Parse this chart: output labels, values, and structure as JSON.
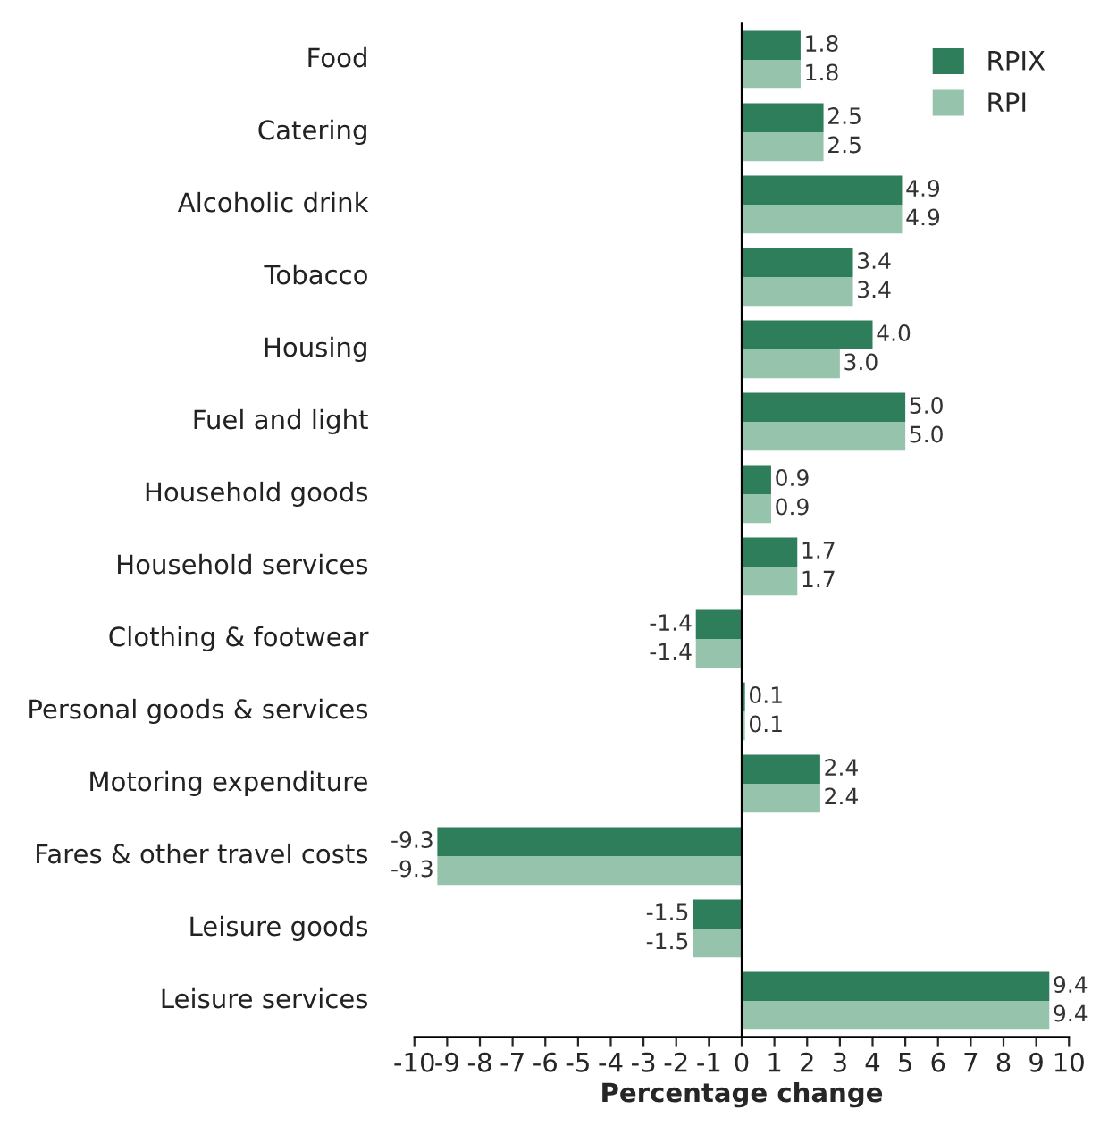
{
  "chart_data": {
    "type": "bar",
    "orientation": "horizontal",
    "xlabel": "Percentage change",
    "categories": [
      "Food",
      "Catering",
      "Alcoholic drink",
      "Tobacco",
      "Housing",
      "Fuel and light",
      "Household goods",
      "Household services",
      "Clothing & footwear",
      "Personal goods & services",
      "Motoring expenditure",
      "Fares & other travel costs",
      "Leisure goods",
      "Leisure services"
    ],
    "series": [
      {
        "name": "RPIX",
        "color": "#2e7d5b",
        "values": [
          1.8,
          2.5,
          4.9,
          3.4,
          4,
          5,
          0.9,
          1.7,
          -1.4,
          0.1,
          2.4,
          -9.3,
          -1.5,
          9.4
        ],
        "value_labels": [
          "1.8",
          "2.5",
          "4.9",
          "3.4",
          "4.0",
          "5.0",
          "0.9",
          "1.7",
          "-1.4",
          "0.1",
          "2.4",
          "-9.3",
          "-1.5",
          "9.4"
        ]
      },
      {
        "name": "RPI",
        "color": "#96c3ab",
        "values": [
          1.8,
          2.5,
          4.9,
          3.4,
          3,
          5,
          0.9,
          1.7,
          -1.4,
          0.1,
          2.4,
          -9.3,
          -1.5,
          9.4
        ],
        "value_labels": [
          "1.8",
          "2.5",
          "4.9",
          "3.4",
          "3.0",
          "5.0",
          "0.9",
          "1.7",
          "-1.4",
          "0.1",
          "2.4",
          "-9.3",
          "-1.5",
          "9.4"
        ]
      }
    ],
    "xlim": [
      -10,
      10
    ],
    "xticks": [
      -10,
      -9,
      -8,
      -7,
      -6,
      -5,
      -4,
      -3,
      -2,
      -1,
      0,
      1,
      2,
      3,
      4,
      5,
      6,
      7,
      8,
      9,
      10
    ],
    "legend": "top right"
  }
}
